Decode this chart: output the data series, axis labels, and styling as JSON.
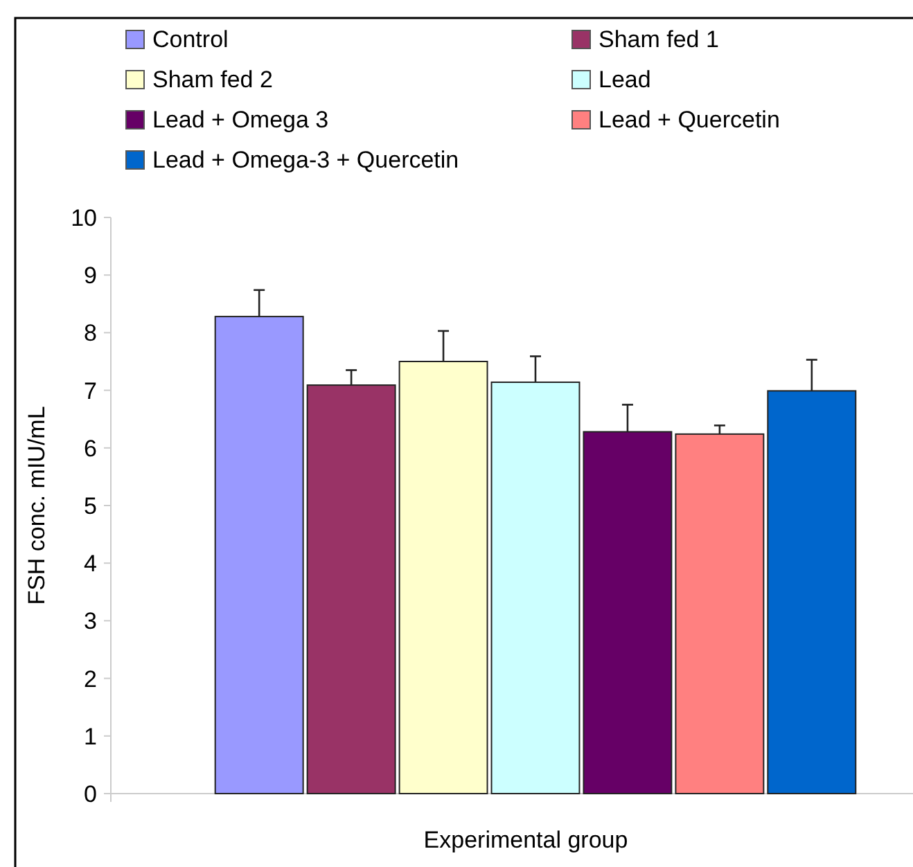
{
  "chart_data": {
    "type": "bar",
    "xlabel": "Experimental group",
    "ylabel": "FSH conc. mIU/mL",
    "categories": [
      null
    ],
    "ylim": [
      0,
      10
    ],
    "yticks": [
      0,
      1,
      2,
      3,
      4,
      5,
      6,
      7,
      8,
      9,
      10
    ],
    "grid": false,
    "legend": "top",
    "series": [
      {
        "name": "Control",
        "color": "#9999ff",
        "values": [
          8.28
        ],
        "errors": [
          0.46
        ]
      },
      {
        "name": "Sham fed 1",
        "color": "#993366",
        "values": [
          7.09
        ],
        "errors": [
          0.26
        ]
      },
      {
        "name": "Sham fed 2",
        "color": "#ffffcc",
        "values": [
          7.5
        ],
        "errors": [
          0.53
        ]
      },
      {
        "name": "Lead",
        "color": "#ccffff",
        "values": [
          7.14
        ],
        "errors": [
          0.45
        ]
      },
      {
        "name": "Lead + Omega 3",
        "color": "#660066",
        "values": [
          6.28
        ],
        "errors": [
          0.47
        ]
      },
      {
        "name": "Lead + Quercetin",
        "color": "#ff8080",
        "values": [
          6.24
        ],
        "errors": [
          0.15
        ]
      },
      {
        "name": "Lead + Omega-3 + Quercetin",
        "color": "#0066cc",
        "values": [
          6.99
        ],
        "errors": [
          0.54
        ]
      }
    ]
  }
}
